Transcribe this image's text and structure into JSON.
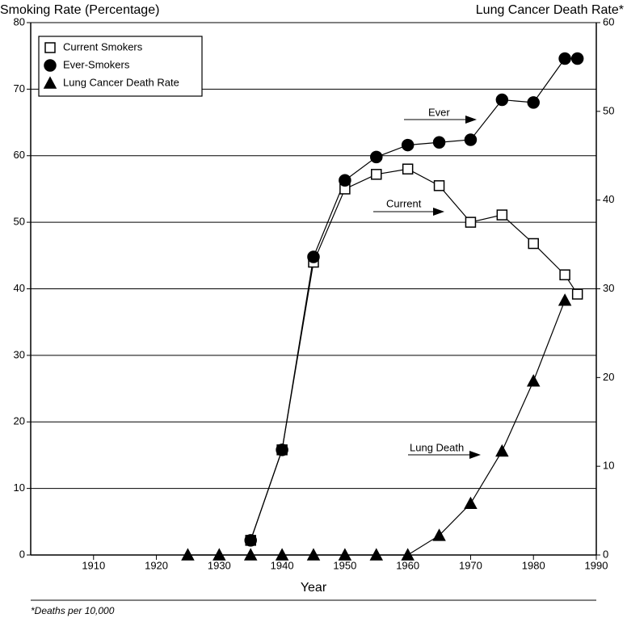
{
  "chart_data": {
    "type": "line",
    "y_label": "Smoking Rate (Percentage)",
    "y2_label": "Lung Cancer Death Rate*",
    "x_label": "Year",
    "footnote": "*Deaths per 10,000",
    "annotations": [
      "Ever",
      "Current",
      "Lung Death"
    ],
    "x": [
      1925,
      1930,
      1935,
      1940,
      1945,
      1950,
      1955,
      1960,
      1965,
      1970,
      1975,
      1980,
      1985,
      1987
    ],
    "series": [
      {
        "name": "Current Smokers",
        "marker": "square",
        "color": "#000000",
        "fill": "#ffffff",
        "values": [
          null,
          null,
          2.2,
          15.8,
          44,
          55,
          57.2,
          58,
          55.5,
          50,
          51.1,
          46.8,
          42.1,
          39.2
        ]
      },
      {
        "name": "Ever-Smokers",
        "marker": "circle",
        "color": "#000000",
        "fill": "#000000",
        "values": [
          null,
          null,
          2.2,
          15.8,
          44.8,
          56.3,
          59.8,
          61.6,
          62.0,
          62.4,
          68.4,
          68.0,
          74.6,
          74.6
        ]
      },
      {
        "name": "Lung Cancer Death Rate",
        "marker": "triangle",
        "color": "#000000",
        "fill": "#000000",
        "axis": "y2",
        "values": [
          0,
          0,
          0,
          0,
          0,
          0,
          0,
          0,
          2.2,
          5.8,
          11.7,
          19.6,
          28.7,
          null
        ]
      }
    ],
    "xlim": [
      1900,
      1990
    ],
    "xticks": [
      1910,
      1920,
      1930,
      1940,
      1950,
      1960,
      1970,
      1980,
      1990
    ],
    "ylim": [
      0,
      80
    ],
    "yticks": [
      0,
      10,
      20,
      30,
      40,
      50,
      60,
      70,
      80
    ],
    "y2lim": [
      0,
      60
    ],
    "y2ticks": [
      0,
      10,
      20,
      30,
      40,
      50,
      60
    ],
    "grid": true,
    "legend": "upper left"
  }
}
